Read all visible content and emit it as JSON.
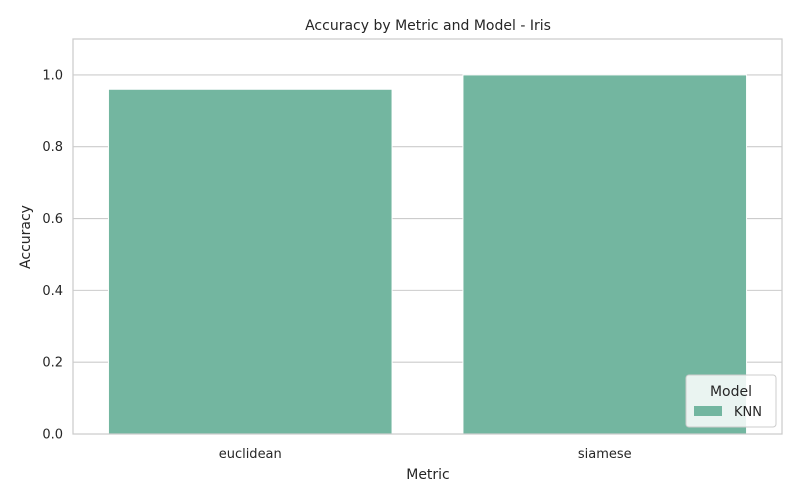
{
  "chart_data": {
    "type": "bar",
    "title": "Accuracy by Metric and Model - Iris",
    "xlabel": "Metric",
    "ylabel": "Accuracy",
    "categories": [
      "euclidean",
      "siamese"
    ],
    "series": [
      {
        "name": "KNN",
        "values": [
          0.96,
          1.0
        ]
      }
    ],
    "ylim": [
      0,
      1.1
    ],
    "yticks": [
      0.0,
      0.2,
      0.4,
      0.6,
      0.8,
      1.0
    ],
    "ytick_labels": [
      "0.0",
      "0.2",
      "0.4",
      "0.6",
      "0.8",
      "1.0"
    ],
    "grid": "horizontal",
    "legend": {
      "title": "Model",
      "placement": "bottom-right"
    },
    "colors": {
      "KNN": "#73b6a0",
      "grid": "#cccccc",
      "axes_edge": "#cccccc"
    }
  }
}
